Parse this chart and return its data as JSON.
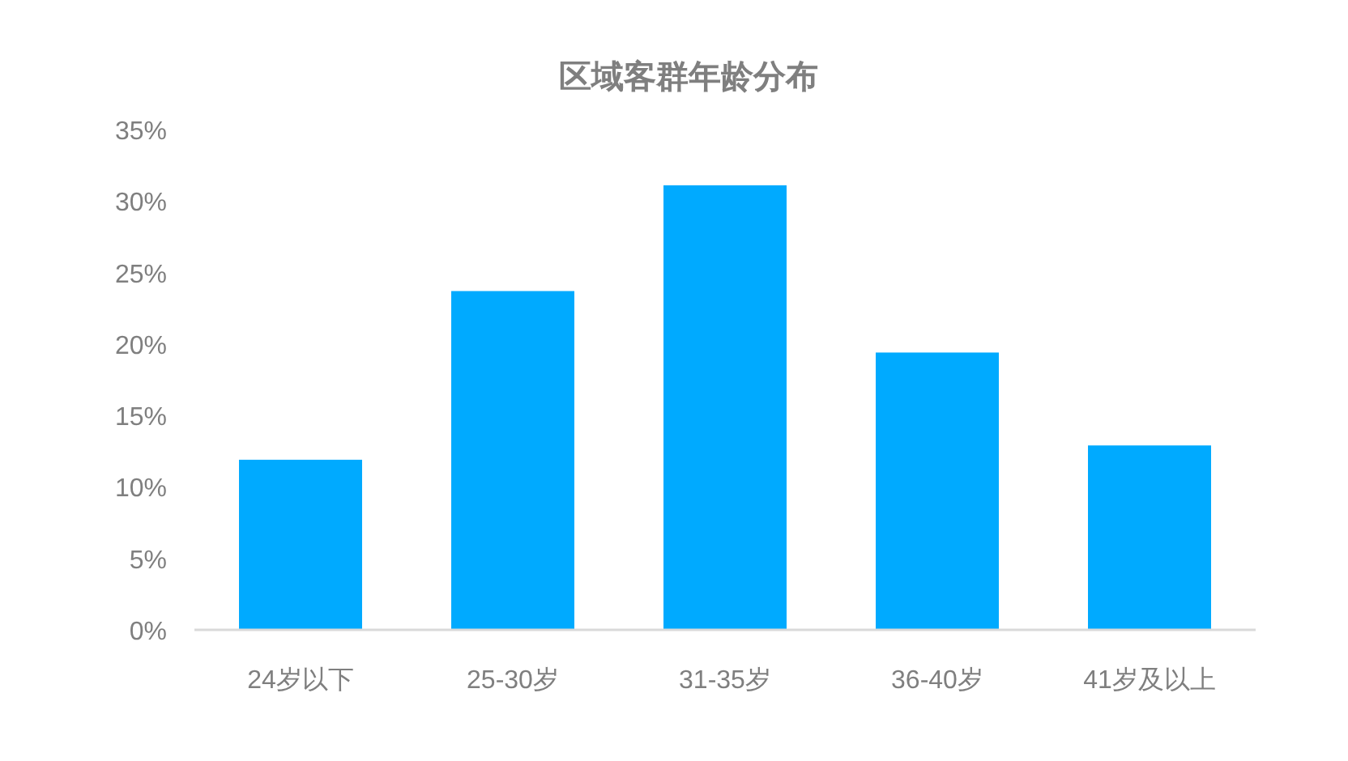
{
  "chart_data": {
    "type": "bar",
    "title": "区域客群年龄分布",
    "categories": [
      "24岁以下",
      "25-30岁",
      "31-35岁",
      "36-40岁",
      "41岁及以上"
    ],
    "values": [
      11.9,
      23.7,
      31.1,
      19.4,
      12.9
    ],
    "color": "#00aaff",
    "ylim": [
      0,
      35
    ],
    "yticks": [
      {
        "value": 0,
        "label": "0%"
      },
      {
        "value": 5,
        "label": "5%"
      },
      {
        "value": 10,
        "label": "10%"
      },
      {
        "value": 15,
        "label": "15%"
      },
      {
        "value": 20,
        "label": "20%"
      },
      {
        "value": 25,
        "label": "25%"
      },
      {
        "value": 30,
        "label": "30%"
      },
      {
        "value": 35,
        "label": "35%"
      }
    ],
    "grid": false
  }
}
